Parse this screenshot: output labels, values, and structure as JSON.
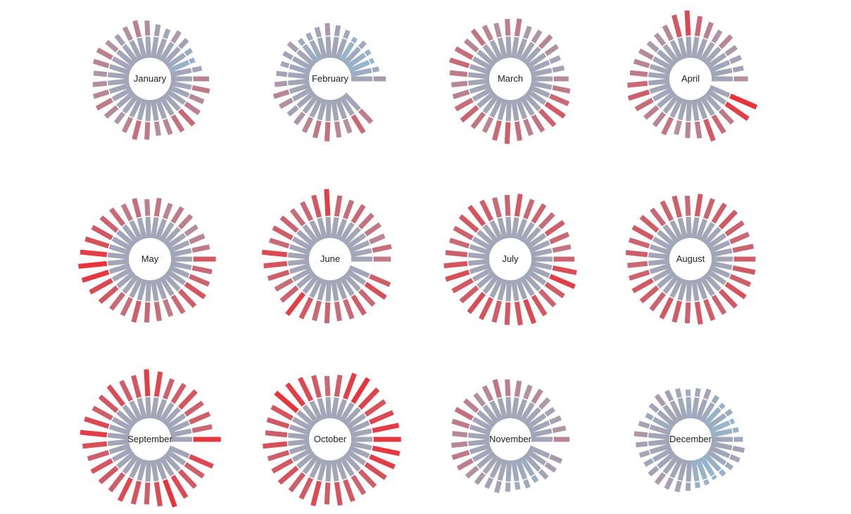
{
  "chart_data": {
    "type": "radial-bar",
    "description_units": "daily temperature per day of month (relative scale 0-1, low = cool/blue, high = hot/red)",
    "temp_scale": [
      0,
      1
    ],
    "color_scale": {
      "low": "#8fbcd4",
      "mid": "#a8a0b0",
      "high": "#e8333a"
    },
    "months": [
      {
        "name": "January",
        "label": "January",
        "values": [
          0.7,
          0.55,
          0.45,
          0.5,
          0.58,
          0.62,
          0.55,
          0.6,
          0.68,
          0.72,
          0.66,
          0.6,
          0.65,
          0.72,
          0.7,
          0.64,
          0.66,
          0.7,
          0.74,
          0.68,
          0.62,
          0.7,
          0.78,
          0.74,
          0.66,
          0.7,
          0.76,
          0.8,
          0.72,
          0.68,
          0.74
        ]
      },
      {
        "name": "February",
        "label": "February",
        "values": [
          0.62,
          0.48,
          0.42,
          0.45,
          0.5,
          0.44,
          0.52,
          0.58,
          0.62,
          0.56,
          0.5,
          0.48,
          0.6,
          0.56,
          0.52,
          0.58,
          0.62,
          0.7,
          0.66,
          0.6,
          0.64,
          0.7,
          0.74,
          0.78,
          0.7,
          0.66,
          0.8,
          0.72
        ]
      },
      {
        "name": "March",
        "label": "March",
        "values": [
          0.68,
          0.6,
          0.58,
          0.66,
          0.7,
          0.64,
          0.62,
          0.74,
          0.72,
          0.66,
          0.7,
          0.76,
          0.7,
          0.78,
          0.8,
          0.74,
          0.7,
          0.72,
          0.78,
          0.82,
          0.76,
          0.7,
          0.8,
          0.84,
          0.78,
          0.72,
          0.76,
          0.82,
          0.86,
          0.8,
          0.74
        ]
      },
      {
        "name": "April",
        "label": "April",
        "values": [
          0.66,
          0.58,
          0.6,
          0.62,
          0.7,
          0.64,
          0.72,
          0.8,
          0.92,
          0.86,
          0.7,
          0.64,
          0.62,
          0.68,
          0.7,
          0.74,
          0.8,
          0.84,
          0.78,
          0.72,
          0.7,
          0.76,
          0.66,
          0.7,
          0.72,
          0.86,
          0.8,
          0.74,
          0.96,
          1.0
        ]
      },
      {
        "name": "May",
        "label": "May",
        "values": [
          0.86,
          0.74,
          0.7,
          0.66,
          0.72,
          0.74,
          0.7,
          0.76,
          0.72,
          0.78,
          0.74,
          0.8,
          0.82,
          0.86,
          0.9,
          0.96,
          1.0,
          0.98,
          0.92,
          0.86,
          0.8,
          0.78,
          0.84,
          0.8,
          0.78,
          0.74,
          0.8,
          0.84,
          0.88,
          0.82,
          0.8
        ]
      },
      {
        "name": "June",
        "label": "June",
        "values": [
          0.74,
          0.78,
          0.7,
          0.74,
          0.76,
          0.8,
          0.78,
          0.82,
          0.96,
          0.86,
          0.8,
          0.78,
          0.82,
          0.84,
          0.8,
          0.92,
          0.88,
          0.84,
          0.78,
          0.82,
          0.96,
          0.86,
          0.8,
          0.82,
          0.78,
          0.8,
          0.84,
          0.8,
          0.9,
          0.84
        ]
      },
      {
        "name": "July",
        "label": "July",
        "values": [
          0.82,
          0.76,
          0.8,
          0.84,
          0.78,
          0.82,
          0.8,
          0.86,
          0.82,
          0.8,
          0.84,
          0.88,
          0.86,
          0.82,
          0.8,
          0.84,
          0.88,
          0.9,
          0.86,
          0.84,
          0.9,
          0.88,
          0.84,
          0.86,
          0.88,
          0.92,
          0.86,
          0.82,
          0.84,
          0.96,
          0.9
        ]
      },
      {
        "name": "August",
        "label": "August",
        "values": [
          0.84,
          0.82,
          0.8,
          0.82,
          0.86,
          0.84,
          0.82,
          0.86,
          0.8,
          0.84,
          0.82,
          0.8,
          0.84,
          0.86,
          0.82,
          0.84,
          0.8,
          0.82,
          0.86,
          0.84,
          0.82,
          0.86,
          0.84,
          0.82,
          0.86,
          0.84,
          0.82,
          0.86,
          0.88,
          0.84,
          0.86
        ]
      },
      {
        "name": "September",
        "label": "September",
        "values": [
          0.98,
          0.8,
          0.84,
          0.82,
          0.88,
          0.84,
          0.82,
          0.92,
          0.96,
          0.86,
          0.84,
          0.9,
          0.86,
          0.84,
          0.92,
          0.96,
          0.9,
          0.84,
          0.88,
          0.86,
          0.84,
          0.92,
          0.88,
          0.84,
          0.9,
          1.0,
          0.92,
          0.86,
          0.84,
          0.92
        ]
      },
      {
        "name": "October",
        "label": "October",
        "values": [
          0.98,
          0.96,
          0.92,
          0.88,
          0.94,
          1.0,
          0.96,
          0.84,
          0.8,
          0.86,
          0.92,
          0.96,
          1.0,
          0.88,
          0.86,
          0.84,
          0.9,
          0.84,
          0.86,
          0.88,
          0.84,
          0.86,
          0.92,
          0.84,
          0.88,
          0.86,
          0.82,
          0.84,
          0.9,
          0.96,
          0.98
        ]
      },
      {
        "name": "November",
        "label": "November",
        "values": [
          0.7,
          0.64,
          0.6,
          0.56,
          0.62,
          0.68,
          0.66,
          0.7,
          0.72,
          0.76,
          0.7,
          0.66,
          0.72,
          0.78,
          0.74,
          0.68,
          0.7,
          0.74,
          0.72,
          0.66,
          0.62,
          0.58,
          0.6,
          0.54,
          0.5,
          0.52,
          0.48,
          0.56,
          0.6,
          0.62
        ]
      },
      {
        "name": "December",
        "label": "December",
        "values": [
          0.54,
          0.46,
          0.42,
          0.48,
          0.44,
          0.5,
          0.56,
          0.52,
          0.48,
          0.54,
          0.58,
          0.62,
          0.56,
          0.5,
          0.58,
          0.64,
          0.6,
          0.56,
          0.54,
          0.58,
          0.62,
          0.6,
          0.58,
          0.52,
          0.46,
          0.44,
          0.4,
          0.46,
          0.5,
          0.56,
          0.6
        ]
      }
    ]
  }
}
